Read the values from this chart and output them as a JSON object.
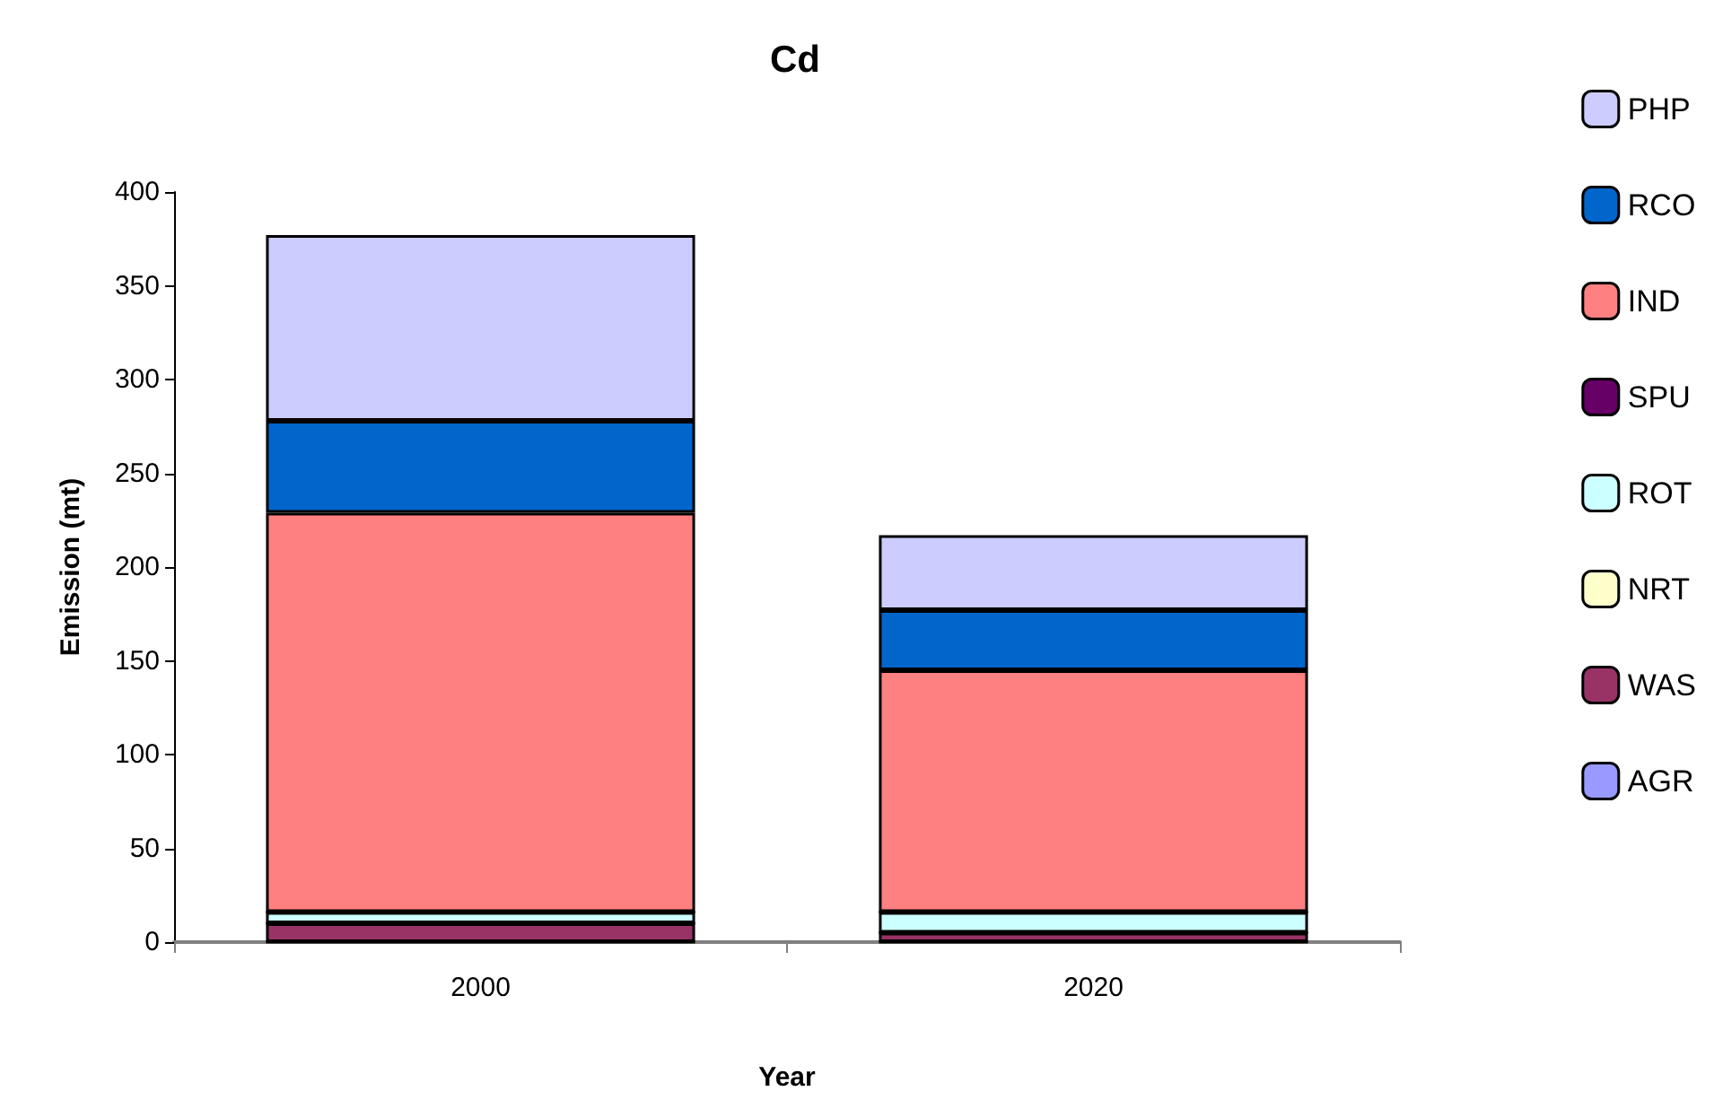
{
  "chart_data": {
    "type": "bar",
    "title": "Cd",
    "xlabel": "Year",
    "ylabel": "Emission (mt)",
    "categories": [
      "2000",
      "2020"
    ],
    "stacked": true,
    "series": [
      {
        "name": "AGR",
        "color": "#9999ff",
        "values": [
          0,
          0
        ]
      },
      {
        "name": "WAS",
        "color": "#993366",
        "values": [
          10,
          5
        ]
      },
      {
        "name": "NRT",
        "color": "#ffffcc",
        "values": [
          0,
          0
        ]
      },
      {
        "name": "ROT",
        "color": "#ccffff",
        "values": [
          6,
          11
        ]
      },
      {
        "name": "SPU",
        "color": "#660066",
        "values": [
          0,
          0
        ]
      },
      {
        "name": "IND",
        "color": "#ff8080",
        "values": [
          213,
          129
        ]
      },
      {
        "name": "RCO",
        "color": "#0066cc",
        "values": [
          49,
          32
        ]
      },
      {
        "name": "PHP",
        "color": "#ccccff",
        "values": [
          99,
          40
        ]
      }
    ],
    "ylim": [
      0,
      400
    ],
    "yticks": [
      0,
      50,
      100,
      150,
      200,
      250,
      300,
      350,
      400
    ],
    "grid": false,
    "legend": "right"
  }
}
